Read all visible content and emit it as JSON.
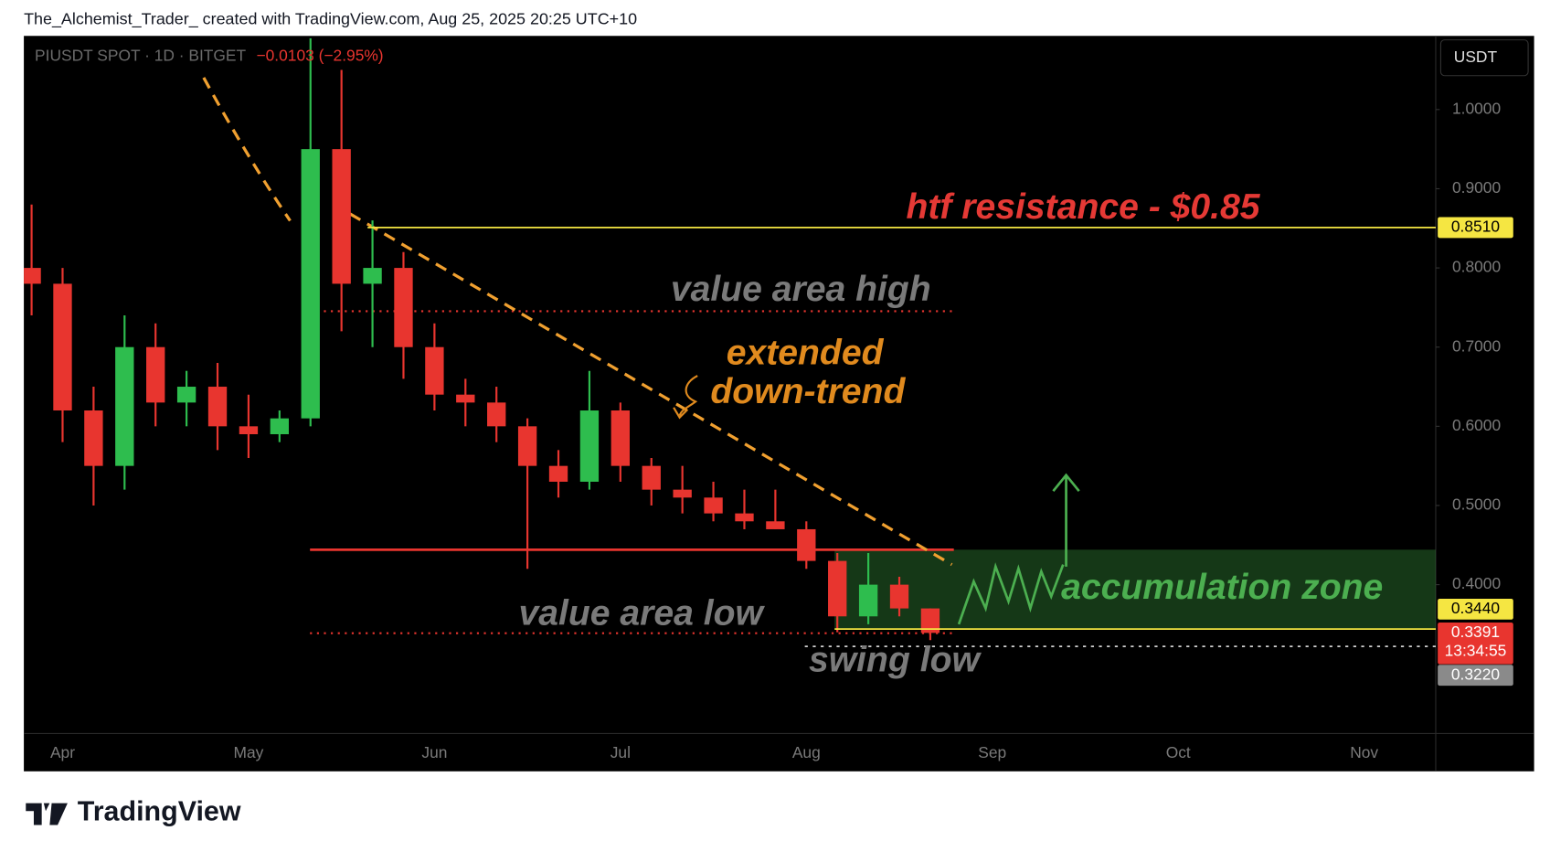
{
  "chart_data": {
    "type": "candlestick",
    "header": "The_Alchemist_Trader_ created with TradingView.com, Aug 25, 2025 20:25 UTC+10",
    "symbol": "PIUSDT SPOT · 1D · BITGET",
    "change": "−0.0103 (−2.95%)",
    "currency": "USDT",
    "categories": [
      null,
      "Apr",
      null,
      null,
      null,
      null,
      null,
      "May",
      null,
      null,
      null,
      null,
      null,
      "Jun",
      null,
      null,
      null,
      null,
      null,
      "Jul",
      null,
      null,
      null,
      null,
      null,
      "Aug",
      null,
      null,
      null,
      null,
      null,
      "Sep",
      null,
      null,
      null,
      null,
      null,
      "Oct",
      null,
      null,
      null,
      null,
      null,
      "Nov",
      null
    ],
    "open": [
      0.8,
      0.78,
      0.62,
      0.55,
      0.7,
      0.63,
      0.65,
      0.6,
      0.59,
      0.61,
      0.95,
      0.78,
      0.8,
      0.7,
      0.64,
      0.63,
      0.6,
      0.55,
      0.53,
      0.62,
      0.55,
      0.52,
      0.51,
      0.49,
      0.48,
      0.47,
      0.43,
      0.36,
      0.4,
      0.37,
      null,
      null,
      null,
      null,
      null,
      null,
      null,
      null,
      null,
      null,
      null,
      null,
      null,
      null,
      null
    ],
    "high": [
      0.88,
      0.8,
      0.65,
      0.74,
      0.73,
      0.67,
      0.68,
      0.64,
      0.62,
      1.09,
      1.05,
      0.86,
      0.82,
      0.73,
      0.66,
      0.65,
      0.61,
      0.57,
      0.67,
      0.63,
      0.56,
      0.55,
      0.53,
      0.52,
      0.52,
      0.48,
      0.44,
      0.44,
      0.41,
      0.37,
      null,
      null,
      null,
      null,
      null,
      null,
      null,
      null,
      null,
      null,
      null,
      null,
      null,
      null,
      null
    ],
    "low": [
      0.74,
      0.58,
      0.5,
      0.52,
      0.6,
      0.6,
      0.57,
      0.56,
      0.58,
      0.6,
      0.72,
      0.7,
      0.66,
      0.62,
      0.6,
      0.58,
      0.42,
      0.51,
      0.52,
      0.53,
      0.5,
      0.49,
      0.48,
      0.47,
      0.47,
      0.42,
      0.34,
      0.35,
      0.36,
      0.33,
      null,
      null,
      null,
      null,
      null,
      null,
      null,
      null,
      null,
      null,
      null,
      null,
      null,
      null,
      null
    ],
    "close": [
      0.78,
      0.62,
      0.55,
      0.7,
      0.63,
      0.65,
      0.6,
      0.59,
      0.61,
      0.95,
      0.78,
      0.8,
      0.7,
      0.64,
      0.63,
      0.6,
      0.55,
      0.53,
      0.62,
      0.55,
      0.52,
      0.51,
      0.49,
      0.48,
      0.47,
      0.43,
      0.36,
      0.4,
      0.37,
      0.3391,
      null,
      null,
      null,
      null,
      null,
      null,
      null,
      null,
      null,
      null,
      null,
      null,
      null,
      null,
      null
    ],
    "up_color": "#2ebd4e",
    "down_color": "#e8352f",
    "ylim": [
      0.212,
      1.093
    ],
    "yticks": [
      {
        "value": 1.0,
        "label": "1.0000"
      },
      {
        "value": 0.9,
        "label": "0.9000"
      },
      {
        "value": 0.8,
        "label": "0.8000"
      },
      {
        "value": 0.7,
        "label": "0.7000"
      },
      {
        "value": 0.6,
        "label": "0.6000"
      },
      {
        "value": 0.5,
        "label": "0.5000"
      },
      {
        "value": 0.4,
        "label": "0.4000"
      }
    ],
    "grid": false,
    "levels": [
      {
        "value": 0.851,
        "label": "0.8510",
        "color": "#f5e642"
      },
      {
        "value": 0.344,
        "label": "0.3440",
        "color": "#f5e642"
      },
      {
        "value": 0.3391,
        "label": "0.3391",
        "color": "#e8352f"
      },
      {
        "value": 0.322,
        "label": "0.3220",
        "color": "#8a8a8a"
      }
    ],
    "countdown": "13:34:55",
    "annotations": [
      {
        "text": "htf resistance - $0.85",
        "color": "#e53935"
      },
      {
        "text": "value area high",
        "color": "#7a7a7a"
      },
      {
        "text": "extended",
        "color": "#e08a1e"
      },
      {
        "text": "down-trend",
        "color": "#e08a1e"
      },
      {
        "text": "accumulation zone",
        "color": "#4caf50"
      },
      {
        "text": "value area low",
        "color": "#7a7a7a"
      },
      {
        "text": "swing low",
        "color": "#7a7a7a"
      }
    ]
  },
  "brand": "TradingView"
}
